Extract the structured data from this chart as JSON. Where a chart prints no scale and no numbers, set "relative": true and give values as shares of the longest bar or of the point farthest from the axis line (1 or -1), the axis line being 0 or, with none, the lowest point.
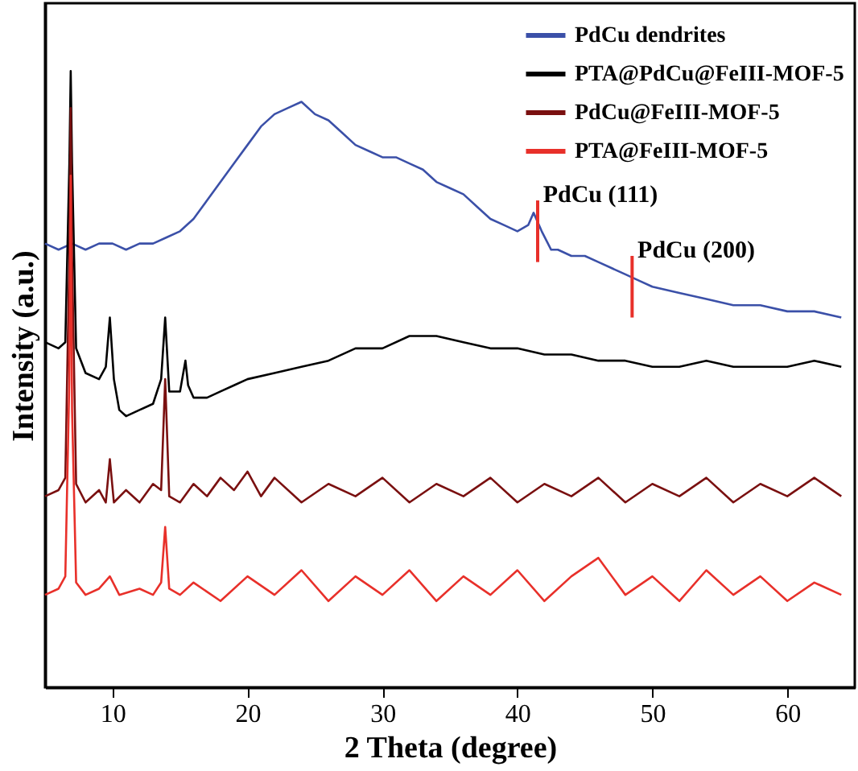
{
  "chart_data": {
    "type": "line",
    "relative": true,
    "xlabel": "2 Theta (degree)",
    "ylabel": "Intensity (a.u.)",
    "xlim": [
      5,
      65
    ],
    "xticks": [
      10,
      20,
      30,
      40,
      50,
      60
    ],
    "tick_labels": "x",
    "grid": false,
    "legend": "top right",
    "marker": "none",
    "line_style": "solid",
    "series": [
      {
        "name": "PdCu dendrites",
        "color": "#3b50a8",
        "x": [
          5,
          6,
          7,
          8,
          9,
          10,
          11,
          12,
          13,
          14,
          15,
          16,
          17,
          18,
          19,
          20,
          21,
          22,
          23,
          24,
          25,
          26,
          27,
          28,
          29,
          30,
          31,
          32,
          33,
          34,
          35,
          36,
          37,
          38,
          39,
          40,
          40.8,
          41.2,
          41.8,
          42.5,
          43,
          44,
          45,
          46,
          47,
          48,
          49,
          50,
          52,
          54,
          56,
          58,
          60,
          62,
          64
        ],
        "values": [
          0.72,
          0.71,
          0.72,
          0.71,
          0.72,
          0.72,
          0.71,
          0.72,
          0.72,
          0.73,
          0.74,
          0.76,
          0.79,
          0.82,
          0.85,
          0.88,
          0.91,
          0.93,
          0.94,
          0.95,
          0.93,
          0.92,
          0.9,
          0.88,
          0.87,
          0.86,
          0.86,
          0.85,
          0.84,
          0.82,
          0.81,
          0.8,
          0.78,
          0.76,
          0.75,
          0.74,
          0.75,
          0.77,
          0.74,
          0.71,
          0.71,
          0.7,
          0.7,
          0.69,
          0.68,
          0.67,
          0.66,
          0.65,
          0.64,
          0.63,
          0.62,
          0.62,
          0.61,
          0.61,
          0.6
        ]
      },
      {
        "name": "PTA@PdCu@FeIII-MOF-5",
        "color": "#000000",
        "x": [
          5,
          6,
          6.5,
          6.8,
          6.9,
          7.0,
          7.3,
          8,
          9,
          9.5,
          9.8,
          10.1,
          10.5,
          11,
          12,
          13,
          13.6,
          13.9,
          14.2,
          15,
          15.4,
          15.6,
          16,
          17,
          18,
          19,
          20,
          22,
          24,
          26,
          28,
          30,
          32,
          34,
          36,
          38,
          40,
          42,
          44,
          46,
          48,
          50,
          52,
          54,
          56,
          58,
          60,
          62,
          64
        ],
        "values": [
          0.56,
          0.55,
          0.56,
          0.85,
          1.0,
          0.85,
          0.55,
          0.51,
          0.5,
          0.52,
          0.6,
          0.5,
          0.45,
          0.44,
          0.45,
          0.46,
          0.5,
          0.6,
          0.48,
          0.48,
          0.53,
          0.49,
          0.47,
          0.47,
          0.48,
          0.49,
          0.5,
          0.51,
          0.52,
          0.53,
          0.55,
          0.55,
          0.57,
          0.57,
          0.56,
          0.55,
          0.55,
          0.54,
          0.54,
          0.53,
          0.53,
          0.52,
          0.52,
          0.53,
          0.52,
          0.52,
          0.52,
          0.53,
          0.52
        ]
      },
      {
        "name": "PdCu@FeIII-MOF-5",
        "color": "#7a1010",
        "x": [
          5,
          6,
          6.5,
          6.8,
          6.9,
          7.0,
          7.3,
          8,
          9,
          9.5,
          9.8,
          10.1,
          11,
          12,
          13,
          13.6,
          13.9,
          14.2,
          15,
          16,
          17,
          18,
          19,
          20,
          21,
          22,
          24,
          26,
          28,
          30,
          32,
          34,
          36,
          38,
          40,
          42,
          44,
          46,
          48,
          50,
          52,
          54,
          56,
          58,
          60,
          62,
          64
        ],
        "values": [
          0.31,
          0.32,
          0.34,
          0.7,
          0.94,
          0.7,
          0.33,
          0.3,
          0.32,
          0.3,
          0.37,
          0.3,
          0.32,
          0.3,
          0.33,
          0.32,
          0.5,
          0.31,
          0.3,
          0.33,
          0.31,
          0.34,
          0.32,
          0.35,
          0.31,
          0.34,
          0.3,
          0.33,
          0.31,
          0.34,
          0.3,
          0.33,
          0.31,
          0.34,
          0.3,
          0.33,
          0.31,
          0.34,
          0.3,
          0.33,
          0.31,
          0.34,
          0.3,
          0.33,
          0.31,
          0.34,
          0.31
        ]
      },
      {
        "name": "PTA@FeIII-MOF-5",
        "color": "#e8302a",
        "x": [
          5,
          6,
          6.5,
          6.8,
          6.9,
          7.0,
          7.3,
          8,
          9,
          9.8,
          10.5,
          12,
          13,
          13.6,
          13.9,
          14.2,
          15,
          16,
          18,
          20,
          22,
          24,
          26,
          28,
          30,
          32,
          34,
          36,
          38,
          40,
          42,
          44,
          46,
          48,
          50,
          52,
          54,
          56,
          58,
          60,
          62,
          64
        ],
        "values": [
          0.15,
          0.16,
          0.18,
          0.5,
          0.83,
          0.45,
          0.17,
          0.15,
          0.16,
          0.18,
          0.15,
          0.16,
          0.15,
          0.17,
          0.26,
          0.16,
          0.15,
          0.17,
          0.14,
          0.18,
          0.15,
          0.19,
          0.14,
          0.18,
          0.15,
          0.19,
          0.14,
          0.18,
          0.15,
          0.19,
          0.14,
          0.18,
          0.21,
          0.15,
          0.18,
          0.14,
          0.19,
          0.15,
          0.18,
          0.14,
          0.17,
          0.15
        ]
      }
    ],
    "annotations": [
      {
        "text": "PdCu (111)",
        "x": 41.5,
        "y": 0.74
      },
      {
        "text": "PdCu (200)",
        "x": 48.5,
        "y": 0.65
      }
    ]
  }
}
